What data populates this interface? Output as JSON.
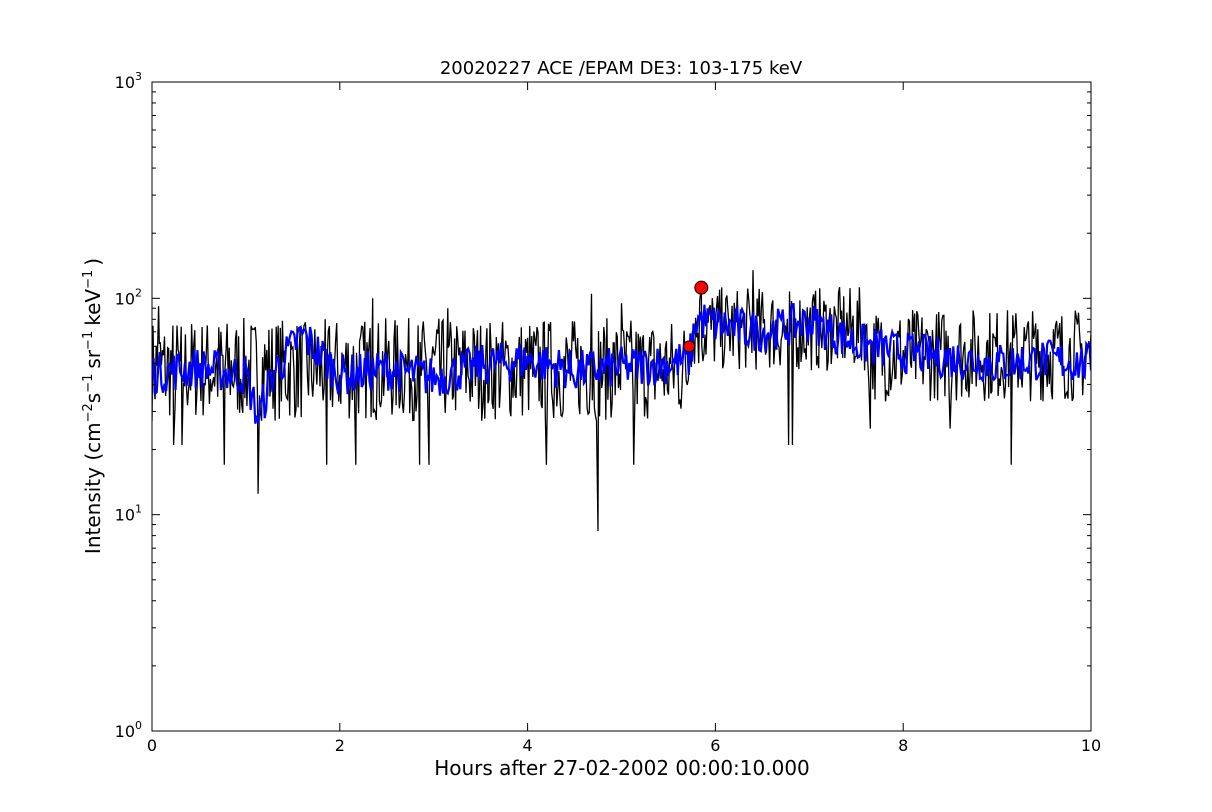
{
  "chart_data": {
    "type": "line",
    "title": "20020227 ACE /EPAM DE3: 103-175 keV",
    "xlabel": "Hours after 27-02-2002 00:00:10.000",
    "ylabel": {
      "prefix": "Intensity (cm",
      "sup1": "−2",
      "mid1": "s",
      "sup2": "−1",
      "mid2": "sr",
      "sup3": "−1",
      "mid3": "keV",
      "sup4": "−1",
      "suffix": ")"
    },
    "xlim": [
      0,
      10
    ],
    "ylim": [
      1,
      1000
    ],
    "yscale": "log",
    "grid": false,
    "x_ticks": [
      "0",
      "2",
      "4",
      "6",
      "8",
      "10"
    ],
    "y_ticks": [
      {
        "base": "10",
        "exp": "0"
      },
      {
        "base": "10",
        "exp": "1"
      },
      {
        "base": "10",
        "exp": "2"
      },
      {
        "base": "10",
        "exp": "3"
      }
    ],
    "series": [
      {
        "color": "#000000",
        "style": "raw-intensity",
        "baseline_segments": [
          {
            "x_start": 0.0,
            "x_end": 5.72,
            "level": 47,
            "spread": 0.55
          },
          {
            "x_start": 5.72,
            "x_end": 7.6,
            "level": 72,
            "spread": 0.45
          },
          {
            "x_start": 7.6,
            "x_end": 10.0,
            "level": 55,
            "spread": 0.5
          }
        ],
        "points": [
          {
            "x": 0.07,
            "y": 92
          },
          {
            "x": 0.23,
            "y": 21
          },
          {
            "x": 0.32,
            "y": 21
          },
          {
            "x": 0.77,
            "y": 17
          },
          {
            "x": 1.13,
            "y": 12.5
          },
          {
            "x": 1.62,
            "y": 75
          },
          {
            "x": 1.86,
            "y": 17
          },
          {
            "x": 2.17,
            "y": 17
          },
          {
            "x": 2.35,
            "y": 100
          },
          {
            "x": 2.85,
            "y": 17
          },
          {
            "x": 2.95,
            "y": 17
          },
          {
            "x": 3.15,
            "y": 90
          },
          {
            "x": 4.2,
            "y": 17
          },
          {
            "x": 4.68,
            "y": 105
          },
          {
            "x": 4.75,
            "y": 8.4
          },
          {
            "x": 5.0,
            "y": 95
          },
          {
            "x": 5.13,
            "y": 17
          },
          {
            "x": 5.85,
            "y": 112
          },
          {
            "x": 6.4,
            "y": 135
          },
          {
            "x": 6.78,
            "y": 21
          },
          {
            "x": 6.82,
            "y": 21
          },
          {
            "x": 7.65,
            "y": 25
          },
          {
            "x": 8.5,
            "y": 25
          },
          {
            "x": 9.15,
            "y": 17
          }
        ]
      },
      {
        "color": "#0000ff",
        "style": "smoothed-intensity",
        "points": [
          {
            "x": 0.0,
            "y": 45
          },
          {
            "x": 0.5,
            "y": 48
          },
          {
            "x": 1.0,
            "y": 44
          },
          {
            "x": 1.13,
            "y": 28
          },
          {
            "x": 1.3,
            "y": 46
          },
          {
            "x": 1.6,
            "y": 68
          },
          {
            "x": 2.0,
            "y": 44
          },
          {
            "x": 2.5,
            "y": 47
          },
          {
            "x": 3.0,
            "y": 43
          },
          {
            "x": 3.5,
            "y": 49
          },
          {
            "x": 4.0,
            "y": 52
          },
          {
            "x": 4.5,
            "y": 46
          },
          {
            "x": 5.0,
            "y": 48
          },
          {
            "x": 5.5,
            "y": 50
          },
          {
            "x": 5.72,
            "y": 52
          },
          {
            "x": 5.8,
            "y": 80
          },
          {
            "x": 6.0,
            "y": 76
          },
          {
            "x": 6.5,
            "y": 70
          },
          {
            "x": 7.0,
            "y": 78
          },
          {
            "x": 7.5,
            "y": 62
          },
          {
            "x": 8.0,
            "y": 56
          },
          {
            "x": 8.5,
            "y": 53
          },
          {
            "x": 9.0,
            "y": 50
          },
          {
            "x": 9.5,
            "y": 52
          },
          {
            "x": 10.0,
            "y": 50
          }
        ]
      }
    ],
    "markers": [
      {
        "x": 5.72,
        "y": 60,
        "color": "#ff0000"
      },
      {
        "x": 5.85,
        "y": 112,
        "color": "#ff0000"
      }
    ],
    "colors": {
      "raw": "#000000",
      "smoothed": "#0000ff",
      "marker": "#ff0000",
      "axes": "#000000",
      "background": "#ffffff"
    }
  }
}
